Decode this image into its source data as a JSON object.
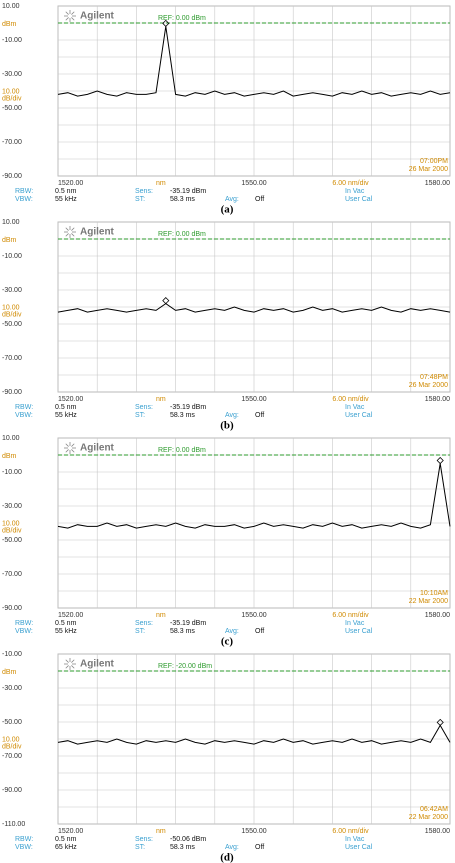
{
  "chart_data": [
    {
      "type": "line",
      "caption": "(a)",
      "brand": "Agilent",
      "ref_label": "REF: 0.00 dBm",
      "ref_level": 0,
      "unit_label": "dBm",
      "scale_value": "10.00",
      "scale_unit": "dB/div",
      "x_unit": "nm",
      "x_scale": "6.00 nm/div",
      "time": "07:00PM",
      "date": "26 Mar 2000",
      "color": "#000000",
      "xlim": [
        1520,
        1580
      ],
      "ylim": [
        -90,
        10
      ],
      "xticks": [
        {
          "value": 1520,
          "label": "1520.00"
        },
        {
          "value": 1550,
          "label": "1550.00"
        },
        {
          "value": 1580,
          "label": "1580.00"
        }
      ],
      "yticks": [
        {
          "value": 10,
          "label": "10.00"
        },
        {
          "value": -10,
          "label": "-10.00"
        },
        {
          "value": -30,
          "label": "-30.00"
        },
        {
          "value": -50,
          "label": "-50.00"
        },
        {
          "value": -70,
          "label": "-70.00"
        },
        {
          "value": -90,
          "label": "-90.00"
        }
      ],
      "xgrid": [
        1520,
        1526,
        1532,
        1538,
        1544,
        1550,
        1556,
        1562,
        1568,
        1574,
        1580
      ],
      "ygrid": [
        10,
        0,
        -10,
        -20,
        -30,
        -40,
        -50,
        -60,
        -70,
        -80,
        -90
      ],
      "info": [
        [
          {
            "label": "RBW:",
            "value": "0.5 nm"
          },
          {
            "label": "Sens:",
            "value": "-35.19 dBm"
          },
          {
            "label": "In Vac"
          }
        ],
        [
          {
            "label": "VBW:",
            "value": "55 kHz"
          },
          {
            "label": "ST:",
            "value": "58.3 ms"
          },
          {
            "label": "Avg:",
            "value": "Off"
          },
          {
            "label": "User Cal"
          }
        ]
      ],
      "x": [
        1520,
        1521.5,
        1523,
        1524.5,
        1526,
        1527.5,
        1529,
        1530.5,
        1532,
        1533.5,
        1535,
        1536.5,
        1538,
        1539.5,
        1541,
        1542.5,
        1544,
        1545.5,
        1547,
        1548.5,
        1550,
        1551.5,
        1553,
        1554.5,
        1556,
        1557.5,
        1559,
        1560.5,
        1562,
        1563.5,
        1565,
        1566.5,
        1568,
        1569.5,
        1571,
        1572.5,
        1574,
        1575.5,
        1577,
        1578.5,
        1580
      ],
      "values": [
        -42,
        -41,
        -43,
        -42,
        -40,
        -42,
        -43,
        -41,
        -42,
        -42,
        -41,
        -2,
        -42,
        -43,
        -41,
        -42,
        -40,
        -42,
        -41,
        -43,
        -42,
        -41,
        -42,
        -40,
        -43,
        -42,
        -41,
        -42,
        -43,
        -41,
        -42,
        -40,
        -42,
        -41,
        -43,
        -42,
        -41,
        -42,
        -40,
        -42,
        -41
      ]
    },
    {
      "type": "line",
      "caption": "(b)",
      "brand": "Agilent",
      "ref_label": "REF: 0.00 dBm",
      "ref_level": 0,
      "unit_label": "dBm",
      "scale_value": "10.00",
      "scale_unit": "dB/div",
      "x_unit": "nm",
      "x_scale": "6.00 nm/div",
      "time": "07:48PM",
      "date": "26 Mar 2000",
      "color": "#000000",
      "xlim": [
        1520,
        1580
      ],
      "ylim": [
        -90,
        10
      ],
      "xticks": [
        {
          "value": 1520,
          "label": "1520.00"
        },
        {
          "value": 1550,
          "label": "1550.00"
        },
        {
          "value": 1580,
          "label": "1580.00"
        }
      ],
      "yticks": [
        {
          "value": 10,
          "label": "10.00"
        },
        {
          "value": -10,
          "label": "-10.00"
        },
        {
          "value": -30,
          "label": "-30.00"
        },
        {
          "value": -50,
          "label": "-50.00"
        },
        {
          "value": -70,
          "label": "-70.00"
        },
        {
          "value": -90,
          "label": "-90.00"
        }
      ],
      "xgrid": [
        1520,
        1526,
        1532,
        1538,
        1544,
        1550,
        1556,
        1562,
        1568,
        1574,
        1580
      ],
      "ygrid": [
        10,
        0,
        -10,
        -20,
        -30,
        -40,
        -50,
        -60,
        -70,
        -80,
        -90
      ],
      "info": [
        [
          {
            "label": "RBW:",
            "value": "0.5 nm"
          },
          {
            "label": "Sens:",
            "value": "-35.19 dBm"
          },
          {
            "label": "In Vac"
          }
        ],
        [
          {
            "label": "VBW:",
            "value": "55 kHz"
          },
          {
            "label": "ST:",
            "value": "58.3 ms"
          },
          {
            "label": "Avg:",
            "value": "Off"
          },
          {
            "label": "User Cal"
          }
        ]
      ],
      "x": [
        1520,
        1521.5,
        1523,
        1524.5,
        1526,
        1527.5,
        1529,
        1530.5,
        1532,
        1533.5,
        1535,
        1536.5,
        1538,
        1539.5,
        1541,
        1542.5,
        1544,
        1545.5,
        1547,
        1548.5,
        1550,
        1551.5,
        1553,
        1554.5,
        1556,
        1557.5,
        1559,
        1560.5,
        1562,
        1563.5,
        1565,
        1566.5,
        1568,
        1569.5,
        1571,
        1572.5,
        1574,
        1575.5,
        1577,
        1578.5,
        1580
      ],
      "values": [
        -43,
        -42,
        -41,
        -43,
        -42,
        -41,
        -42,
        -43,
        -42,
        -41,
        -42,
        -38,
        -42,
        -41,
        -43,
        -42,
        -41,
        -42,
        -40,
        -42,
        -43,
        -41,
        -42,
        -41,
        -43,
        -42,
        -40,
        -42,
        -41,
        -43,
        -42,
        -41,
        -42,
        -40,
        -42,
        -43,
        -41,
        -42,
        -41,
        -42,
        -43
      ]
    },
    {
      "type": "line",
      "caption": "(c)",
      "brand": "Agilent",
      "ref_label": "REF: 0.00 dBm",
      "ref_level": 0,
      "unit_label": "dBm",
      "scale_value": "10.00",
      "scale_unit": "dB/div",
      "x_unit": "nm",
      "x_scale": "6.00 nm/div",
      "time": "10:10AM",
      "date": "22 Mar 2000",
      "color": "#000000",
      "xlim": [
        1520,
        1580
      ],
      "ylim": [
        -90,
        10
      ],
      "xticks": [
        {
          "value": 1520,
          "label": "1520.00"
        },
        {
          "value": 1550,
          "label": "1550.00"
        },
        {
          "value": 1580,
          "label": "1580.00"
        }
      ],
      "yticks": [
        {
          "value": 10,
          "label": "10.00"
        },
        {
          "value": -10,
          "label": "-10.00"
        },
        {
          "value": -30,
          "label": "-30.00"
        },
        {
          "value": -50,
          "label": "-50.00"
        },
        {
          "value": -70,
          "label": "-70.00"
        },
        {
          "value": -90,
          "label": "-90.00"
        }
      ],
      "xgrid": [
        1520,
        1526,
        1532,
        1538,
        1544,
        1550,
        1556,
        1562,
        1568,
        1574,
        1580
      ],
      "ygrid": [
        10,
        0,
        -10,
        -20,
        -30,
        -40,
        -50,
        -60,
        -70,
        -80,
        -90
      ],
      "info": [
        [
          {
            "label": "RBW:",
            "value": "0.5 nm"
          },
          {
            "label": "Sens:",
            "value": "-35.19 dBm"
          },
          {
            "label": "In Vac"
          }
        ],
        [
          {
            "label": "VBW:",
            "value": "55 kHz"
          },
          {
            "label": "ST:",
            "value": "58.3 ms"
          },
          {
            "label": "Avg:",
            "value": "Off"
          },
          {
            "label": "User Cal"
          }
        ]
      ],
      "x": [
        1520,
        1521.5,
        1523,
        1524.5,
        1526,
        1527.5,
        1529,
        1530.5,
        1532,
        1533.5,
        1535,
        1536.5,
        1538,
        1539.5,
        1541,
        1542.5,
        1544,
        1545.5,
        1547,
        1548.5,
        1550,
        1551.5,
        1553,
        1554.5,
        1556,
        1557.5,
        1559,
        1560.5,
        1562,
        1563.5,
        1565,
        1566.5,
        1568,
        1569.5,
        1571,
        1572.5,
        1574,
        1575.5,
        1577,
        1578.5,
        1580
      ],
      "values": [
        -42,
        -43,
        -41,
        -42,
        -42,
        -40,
        -42,
        -41,
        -43,
        -42,
        -41,
        -42,
        -40,
        -42,
        -43,
        -41,
        -42,
        -42,
        -41,
        -43,
        -42,
        -40,
        -42,
        -41,
        -42,
        -43,
        -41,
        -42,
        -40,
        -42,
        -41,
        -43,
        -42,
        -41,
        -42,
        -40,
        -42,
        -43,
        -41,
        -5,
        -42
      ]
    },
    {
      "type": "line",
      "caption": "(d)",
      "brand": "Agilent",
      "ref_label": "REF: -20.00 dBm",
      "ref_level": -20,
      "unit_label": "dBm",
      "scale_value": "10.00",
      "scale_unit": "dB/div",
      "x_unit": "nm",
      "x_scale": "6.00 nm/div",
      "time": "06:42AM",
      "date": "22 Mar 2000",
      "color": "#000000",
      "xlim": [
        1520,
        1580
      ],
      "ylim": [
        -110,
        -10
      ],
      "xticks": [
        {
          "value": 1520,
          "label": "1520.00"
        },
        {
          "value": 1550,
          "label": "1550.00"
        },
        {
          "value": 1580,
          "label": "1580.00"
        }
      ],
      "yticks": [
        {
          "value": -10,
          "label": "-10.00"
        },
        {
          "value": -30,
          "label": "-30.00"
        },
        {
          "value": -50,
          "label": "-50.00"
        },
        {
          "value": -70,
          "label": "-70.00"
        },
        {
          "value": -90,
          "label": "-90.00"
        },
        {
          "value": -110,
          "label": "-110.00"
        }
      ],
      "xgrid": [
        1520,
        1526,
        1532,
        1538,
        1544,
        1550,
        1556,
        1562,
        1568,
        1574,
        1580
      ],
      "ygrid": [
        -10,
        -20,
        -30,
        -40,
        -50,
        -60,
        -70,
        -80,
        -90,
        -100,
        -110
      ],
      "info": [
        [
          {
            "label": "RBW:",
            "value": "0.5 nm"
          },
          {
            "label": "Sens:",
            "value": "-50.06 dBm"
          },
          {
            "label": "In Vac"
          }
        ],
        [
          {
            "label": "VBW:",
            "value": "65 kHz"
          },
          {
            "label": "ST:",
            "value": "58.3 ms"
          },
          {
            "label": "Avg:",
            "value": "Off"
          },
          {
            "label": "User Cal"
          }
        ]
      ],
      "x": [
        1520,
        1521.5,
        1523,
        1524.5,
        1526,
        1527.5,
        1529,
        1530.5,
        1532,
        1533.5,
        1535,
        1536.5,
        1538,
        1539.5,
        1541,
        1542.5,
        1544,
        1545.5,
        1547,
        1548.5,
        1550,
        1551.5,
        1553,
        1554.5,
        1556,
        1557.5,
        1559,
        1560.5,
        1562,
        1563.5,
        1565,
        1566.5,
        1568,
        1569.5,
        1571,
        1572.5,
        1574,
        1575.5,
        1577,
        1578.5,
        1580
      ],
      "values": [
        -62,
        -61,
        -63,
        -62,
        -61,
        -62,
        -60,
        -62,
        -63,
        -61,
        -62,
        -61,
        -62,
        -60,
        -62,
        -63,
        -61,
        -62,
        -61,
        -62,
        -63,
        -61,
        -62,
        -60,
        -62,
        -61,
        -63,
        -62,
        -61,
        -62,
        -60,
        -62,
        -61,
        -63,
        -62,
        -61,
        -62,
        -60,
        -62,
        -52,
        -62
      ]
    }
  ]
}
